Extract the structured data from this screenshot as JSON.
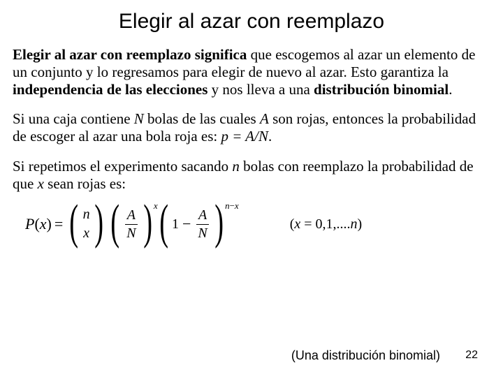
{
  "title": "Elegir al azar con reemplazo",
  "p1": {
    "b1": "Elegir al azar con reemplazo significa",
    "t1": " que escogemos al azar un elemento de un conjunto y lo regresamos para elegir de nuevo al azar. Esto garantiza la ",
    "b2": "independencia de las elecciones",
    "t2": " y nos lleva a una ",
    "b3": "distribución binomial",
    "t3": "."
  },
  "p2": {
    "t1": "Si una caja contiene ",
    "i1": "N",
    "t2": " bolas de las cuales ",
    "i2": "A",
    "t3": " son rojas, entonces la probabilidad de escoger al azar una bola roja es:   ",
    "i3": "p = A/N",
    "t4": "."
  },
  "p3": {
    "t1": "Si repetimos el experimento sacando ",
    "i1": "n",
    "t2": " bolas con reemplazo la probabilidad de que ",
    "i2": "x",
    "t3": " sean rojas es:"
  },
  "formula": {
    "lhs": "P",
    "lhs_arg": "x",
    "binom_top": "n",
    "binom_bot": "x",
    "frac_num": "A",
    "frac_den": "N",
    "exp1": "x",
    "one": "1",
    "exp2_a": "n",
    "exp2_b": "x",
    "domain_open": "(",
    "domain_var": "x",
    "domain_eq": " = 0,1,....",
    "domain_n": "n",
    "domain_close": ")"
  },
  "caption": "(Una distribución binomial)",
  "page": "22",
  "colors": {
    "text": "#000000",
    "bg": "#ffffff"
  }
}
